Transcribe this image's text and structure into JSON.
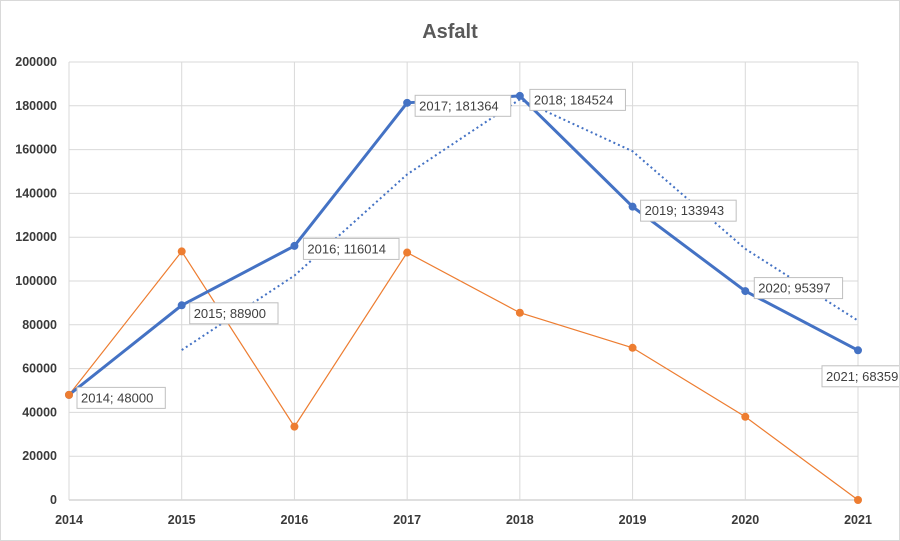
{
  "chart_data": {
    "type": "line",
    "title": "Asfalt",
    "xlabel": "",
    "ylabel": "",
    "x": [
      "2014",
      "2015",
      "2016",
      "2017",
      "2018",
      "2019",
      "2020",
      "2021"
    ],
    "ylim": [
      0,
      200000
    ],
    "yticks": [
      "0",
      "20000",
      "40000",
      "60000",
      "80000",
      "100000",
      "120000",
      "140000",
      "160000",
      "180000",
      "200000"
    ],
    "grid": true,
    "legend": "none",
    "series": [
      {
        "color": "#4472c4",
        "values": [
          48000,
          88900,
          116014,
          181364,
          184524,
          133943,
          95397,
          68359
        ],
        "labels": [
          "2014; 48000",
          "2015; 88900",
          "2016; 116014",
          "2017; 181364",
          "2018; 184524",
          "2019; 133943",
          "2020; 95397",
          "2021; 68359"
        ]
      },
      {
        "color": "#ed7d31",
        "values": [
          48000,
          113500,
          33500,
          113000,
          85500,
          69500,
          38000,
          0
        ]
      },
      {
        "style": "dotted trendline",
        "color": "#4472c4",
        "x": [
          "2015",
          "2016",
          "2017",
          "2018",
          "2019",
          "2020",
          "2021"
        ],
        "values": [
          68450,
          102457,
          148689,
          182944,
          159234,
          114670,
          81878
        ]
      }
    ]
  }
}
